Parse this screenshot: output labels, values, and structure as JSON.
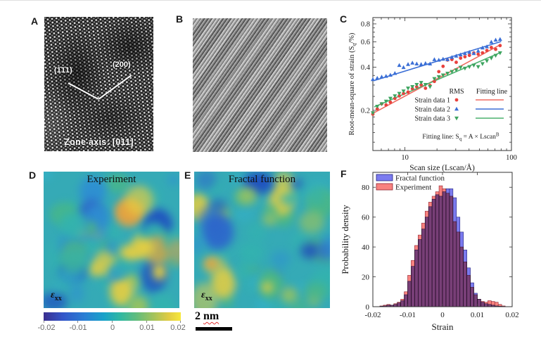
{
  "figure": {
    "panel_labels": {
      "A": "A",
      "B": "B",
      "C": "C",
      "D": "D",
      "E": "E",
      "F": "F"
    },
    "panel_a": {
      "plane1": "(1̄1̄1)",
      "plane2": "(200)",
      "zone_axis": "Zone axis: [011]"
    },
    "panel_d": {
      "title": "Experiment",
      "strain_symbol": "ε",
      "strain_sub": "xx"
    },
    "panel_e": {
      "title": "Fractal function",
      "strain_symbol": "ε",
      "strain_sub": "xx"
    },
    "scalebar": {
      "value": "2",
      "unit": "nm"
    },
    "colorbar": {
      "tick_labels": [
        "-0.02",
        "-0.01",
        "0",
        "0.01",
        "0.02"
      ]
    }
  },
  "chart_data": [
    {
      "id": "C",
      "type": "scatter",
      "xlabel": "Scan size (Lscan/Å)",
      "ylabel_parts": {
        "pre": "Root-mean-square of strain (S",
        "sub": "q",
        "post": "/%)"
      },
      "equation_parts": {
        "pre": "Fitting line: S",
        "sub": "q",
        "mid": " = A × Lscan",
        "sup": "B"
      },
      "xscale": "log",
      "yscale": "log",
      "xlim": [
        5,
        100
      ],
      "ylim": [
        0.105,
        0.885
      ],
      "xtick_values": [
        10,
        100
      ],
      "xtick_labels": [
        "10",
        "100"
      ],
      "xtick_minor": [
        6,
        7,
        8,
        9,
        20,
        30,
        40,
        50,
        60,
        70,
        80,
        90
      ],
      "ytick_values": [
        0.2,
        0.4,
        0.6,
        0.8
      ],
      "ytick_labels": [
        "0.2",
        "0.4",
        "0.6",
        "0.8"
      ],
      "ytick_minor": [
        0.12,
        0.14,
        0.16,
        0.18,
        0.25,
        0.3,
        0.35,
        0.45,
        0.5,
        0.55,
        0.65,
        0.7,
        0.75,
        0.85
      ],
      "legend": {
        "header_marker": "RMS",
        "header_line": "Fitting line",
        "rows": [
          "Strain data 1",
          "Strain data 2",
          "Strain data 3"
        ]
      },
      "x": [
        5.0,
        5.5,
        6.05,
        6.65,
        7.3,
        8.05,
        8.85,
        9.7,
        10.7,
        11.75,
        12.9,
        14.2,
        15.6,
        17.2,
        18.9,
        20.8,
        22.8,
        25.1,
        27.6,
        30.3,
        33.3,
        36.6,
        40.3,
        44.3,
        48.7,
        53.5,
        58.8,
        64.7,
        71.1,
        78.2
      ],
      "series": [
        {
          "name": "Strain data 1",
          "marker": "circle",
          "color": "#e8413d",
          "line_color": "#ef6a60",
          "fit": {
            "A": 0.1,
            "B": 0.4
          },
          "y": [
            0.188,
            0.205,
            0.222,
            0.218,
            0.228,
            0.242,
            0.252,
            0.262,
            0.268,
            0.283,
            0.292,
            0.301,
            0.285,
            0.298,
            0.318,
            0.372,
            0.405,
            0.448,
            0.452,
            0.432,
            0.462,
            0.472,
            0.483,
            0.502,
            0.492,
            0.503,
            0.522,
            0.548,
            0.532,
            0.565
          ]
        },
        {
          "name": "Strain data 2",
          "marker": "triangle-up",
          "color": "#3b6fd6",
          "line_color": "#3b6fd6",
          "fit": {
            "A": 0.222,
            "B": 0.228
          },
          "y": [
            0.328,
            0.335,
            0.342,
            0.346,
            0.352,
            0.362,
            0.412,
            0.398,
            0.418,
            0.428,
            0.422,
            0.418,
            0.425,
            0.422,
            0.452,
            0.448,
            0.455,
            0.452,
            0.468,
            0.478,
            0.488,
            0.498,
            0.508,
            0.498,
            0.518,
            0.545,
            0.555,
            0.598,
            0.618,
            0.625
          ]
        },
        {
          "name": "Strain data 3",
          "marker": "triangle-down",
          "color": "#3da45f",
          "line_color": "#4cb06e",
          "fit": {
            "A": 0.125,
            "B": 0.32
          },
          "y": [
            0.192,
            0.213,
            0.222,
            0.231,
            0.242,
            0.252,
            0.262,
            0.272,
            0.285,
            0.292,
            0.302,
            0.312,
            0.302,
            0.292,
            0.332,
            0.342,
            0.352,
            0.362,
            0.372,
            0.382,
            0.398,
            0.392,
            0.402,
            0.412,
            0.402,
            0.422,
            0.442,
            0.462,
            0.482,
            0.502
          ]
        }
      ]
    },
    {
      "id": "F",
      "type": "histogram",
      "xlabel": "Strain",
      "ylabel": "Probability density",
      "xlim": [
        -0.02,
        0.02
      ],
      "ylim": [
        0,
        90
      ],
      "xtick_values": [
        -0.02,
        -0.01,
        0,
        0.01,
        0.02
      ],
      "xtick_labels": [
        "-0.02",
        "-0.01",
        "0",
        "0.01",
        "0.02"
      ],
      "ytick_values": [
        0,
        20,
        40,
        60,
        80
      ],
      "ytick_labels": [
        "0",
        "20",
        "40",
        "60",
        "80"
      ],
      "bin_start": -0.018,
      "bin_width": 0.001,
      "series": [
        {
          "name": "Fractal function",
          "fill": "#7b7bef",
          "edge": "#23237d",
          "values": [
            0.3,
            0.5,
            1,
            1,
            1.5,
            2.5,
            4,
            8,
            17,
            27,
            38,
            45,
            52,
            60,
            67,
            72,
            75,
            74,
            77,
            79,
            79,
            73,
            60,
            50,
            38,
            26,
            16,
            9,
            5,
            3,
            2,
            1.5,
            1,
            0.5,
            0.3,
            0.2
          ]
        },
        {
          "name": "Experiment",
          "fill": "#f8827f",
          "edge": "#8f2430",
          "values": [
            0.5,
            1,
            1.5,
            1,
            2,
            3,
            5,
            10,
            21,
            31,
            41,
            48,
            56,
            64,
            70,
            74,
            77,
            81,
            79,
            76,
            74,
            57,
            50,
            40,
            30,
            21,
            13,
            8,
            5,
            3.5,
            3,
            4,
            3.5,
            3,
            1.5,
            0.5
          ]
        }
      ]
    }
  ]
}
